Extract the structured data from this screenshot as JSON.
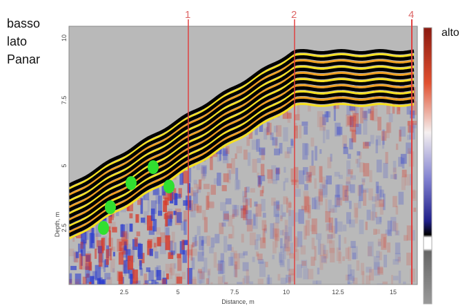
{
  "left_label": [
    "basso",
    "lato",
    "Panar"
  ],
  "right_label": "alto",
  "markers": [
    "1",
    "2",
    "4"
  ],
  "x_axis": {
    "label": "Distance, m",
    "ticks": [
      "2.5",
      "5",
      "7.5",
      "10",
      "12.5",
      "15"
    ]
  },
  "y_axis": {
    "label": "Depth, m",
    "ticks": [
      "10",
      "7.5",
      "5",
      "2.5"
    ]
  }
}
